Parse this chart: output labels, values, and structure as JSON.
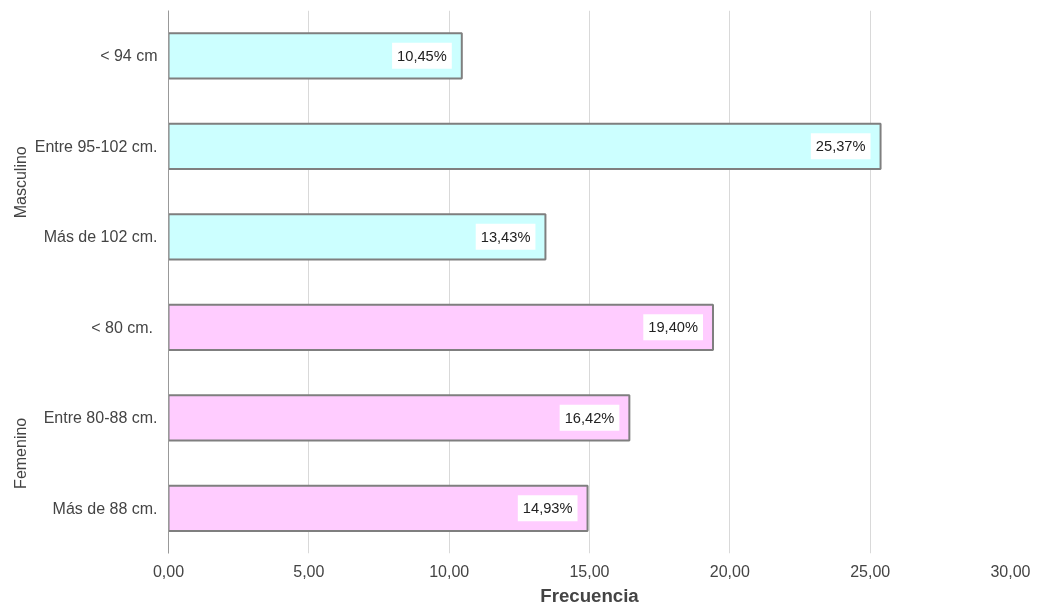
{
  "chart_data": {
    "type": "bar",
    "orientation": "horizontal",
    "xlabel": "Frecuencia",
    "categories": [
      "< 94 cm",
      "Entre 95-102 cm.",
      "Más de 102 cm.",
      "<  80 cm.",
      "Entre 80-88 cm.",
      "Más de 88 cm."
    ],
    "values": [
      10.45,
      25.37,
      13.43,
      19.4,
      16.42,
      14.93
    ],
    "value_labels": [
      "10,45%",
      "25,37%",
      "13,43%",
      "19,40%",
      "16,42%",
      "14,93%"
    ],
    "colors": [
      "#ccffff",
      "#ccffff",
      "#ccffff",
      "#ffccff",
      "#ffccff",
      "#ffccff"
    ],
    "annotations": [
      "Masculino",
      "Femenino"
    ],
    "xlim": [
      0,
      30
    ],
    "xticks": [
      {
        "value": 0,
        "label": "0,00"
      },
      {
        "value": 5,
        "label": "5,00"
      },
      {
        "value": 10,
        "label": "10,00"
      },
      {
        "value": 15,
        "label": "15,00"
      },
      {
        "value": 20,
        "label": "20,00"
      },
      {
        "value": 25,
        "label": "25,00"
      },
      {
        "value": 30,
        "label": "30,00"
      }
    ],
    "grid": "x"
  }
}
